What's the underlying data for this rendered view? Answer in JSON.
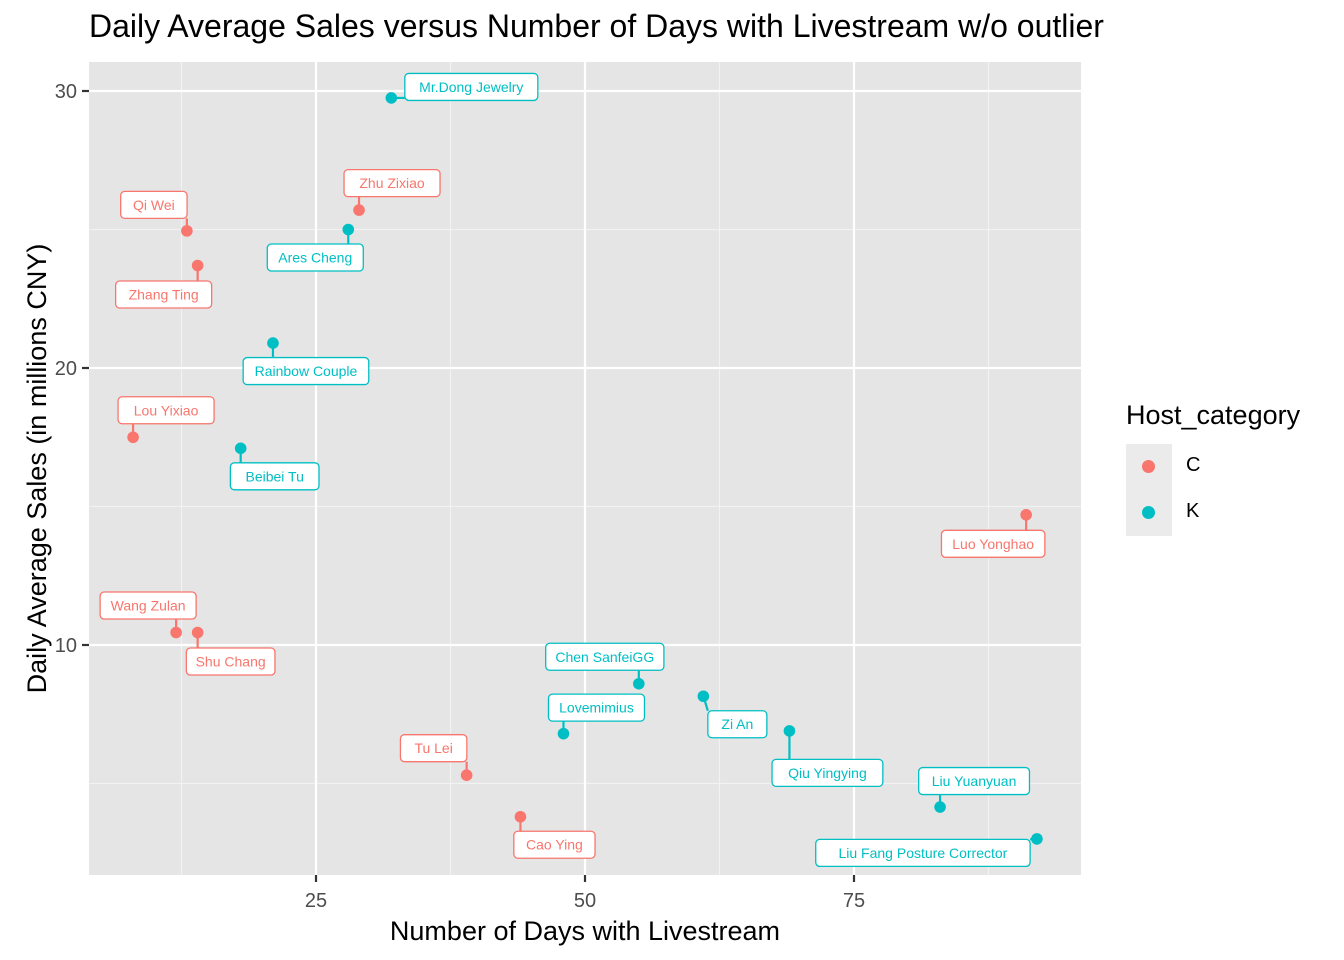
{
  "chart_data": {
    "type": "scatter",
    "title": "Daily Average Sales versus Number of Days with Livestream w/o outlier",
    "xlabel": "Number of Days with Livestream",
    "ylabel": "Daily Average Sales (in millions CNY)",
    "xlim": [
      5,
      95
    ],
    "ylim": [
      1.8,
      31
    ],
    "x_ticks": [
      25,
      50,
      75
    ],
    "y_ticks": [
      10,
      20,
      30
    ],
    "grid": true,
    "legend": {
      "title": "Host_category",
      "position": "right",
      "entries": [
        {
          "label": "C",
          "color": "#F8766D"
        },
        {
          "label": "K",
          "color": "#00BFC4"
        }
      ]
    },
    "series": [
      {
        "name": "C",
        "color": "#F8766D",
        "points": [
          {
            "label": "Zhu Zixiao",
            "x": 29,
            "y": 25.7
          },
          {
            "label": "Qi Wei",
            "x": 13,
            "y": 24.95
          },
          {
            "label": "Zhang Ting",
            "x": 14,
            "y": 23.7
          },
          {
            "label": "Lou Yixiao",
            "x": 8,
            "y": 17.5
          },
          {
            "label": "Luo Yonghao",
            "x": 91,
            "y": 14.7
          },
          {
            "label": "Wang Zulan",
            "x": 12,
            "y": 10.45
          },
          {
            "label": "Shu Chang",
            "x": 14,
            "y": 10.45
          },
          {
            "label": "Tu Lei",
            "x": 39,
            "y": 5.3
          },
          {
            "label": "Cao Ying",
            "x": 44,
            "y": 3.8
          }
        ]
      },
      {
        "name": "K",
        "color": "#00BFC4",
        "points": [
          {
            "label": "Mr.Dong Jewelry",
            "x": 32,
            "y": 29.75
          },
          {
            "label": "Ares Cheng",
            "x": 28,
            "y": 25.0
          },
          {
            "label": "Rainbow Couple",
            "x": 21,
            "y": 20.9
          },
          {
            "label": "Beibei Tu",
            "x": 18,
            "y": 17.1
          },
          {
            "label": "Chen SanfeiGG",
            "x": 55,
            "y": 8.6
          },
          {
            "label": "Zi An",
            "x": 61,
            "y": 8.15
          },
          {
            "label": "Lovemimius",
            "x": 48,
            "y": 6.8
          },
          {
            "label": "Qiu Yingying",
            "x": 69,
            "y": 6.9
          },
          {
            "label": "Liu Yuanyuan",
            "x": 83,
            "y": 4.15
          },
          {
            "label": "Liu Fang Posture Corrector",
            "x": 92,
            "y": 3.0
          }
        ]
      }
    ]
  }
}
